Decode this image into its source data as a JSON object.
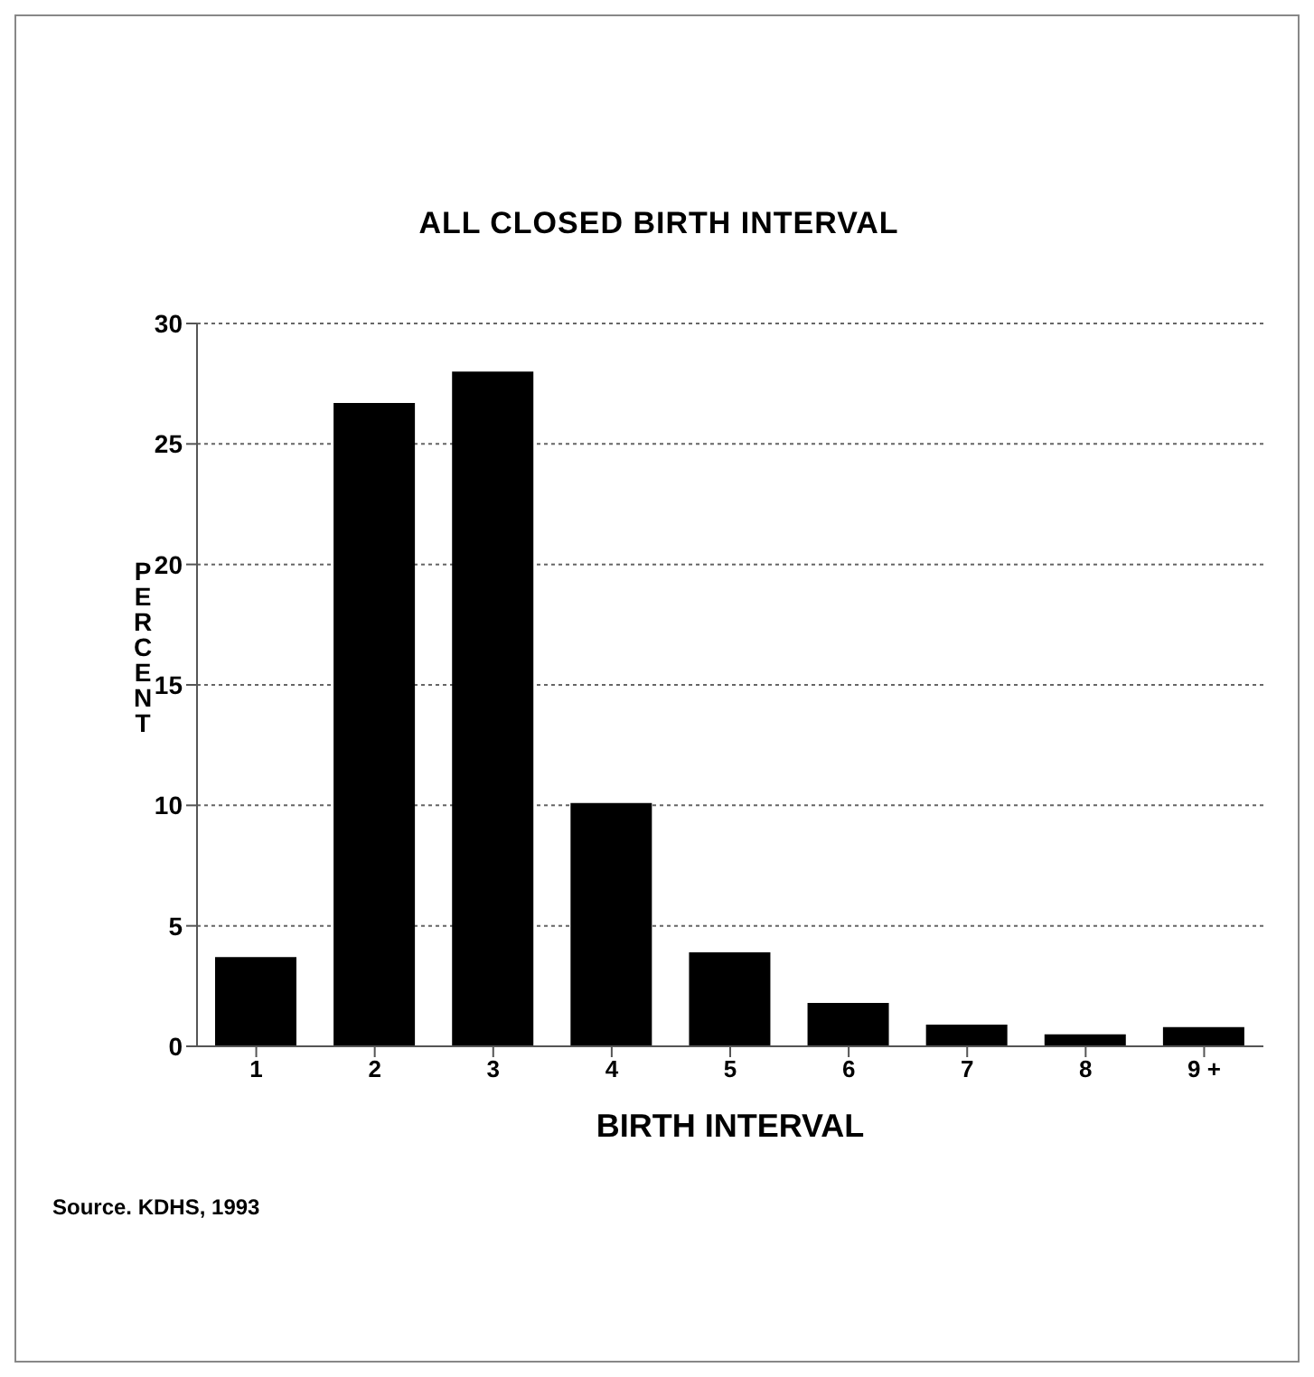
{
  "chart_data": {
    "type": "bar",
    "title": "ALL CLOSED BIRTH INTERVAL",
    "xlabel": "BIRTH INTERVAL",
    "ylabel": "PERCENT",
    "categories": [
      "1",
      "2",
      "3",
      "4",
      "5",
      "6",
      "7",
      "8",
      "9 +"
    ],
    "values": [
      3.7,
      26.7,
      28.0,
      10.1,
      3.9,
      1.8,
      0.9,
      0.5,
      0.8
    ],
    "color": "#000000",
    "ylim": [
      0,
      30
    ],
    "yticks": [
      0,
      5,
      10,
      15,
      20,
      25,
      30
    ],
    "grid": "y",
    "legend": false,
    "annotations": [
      "Source. KDHS, 1993"
    ]
  }
}
